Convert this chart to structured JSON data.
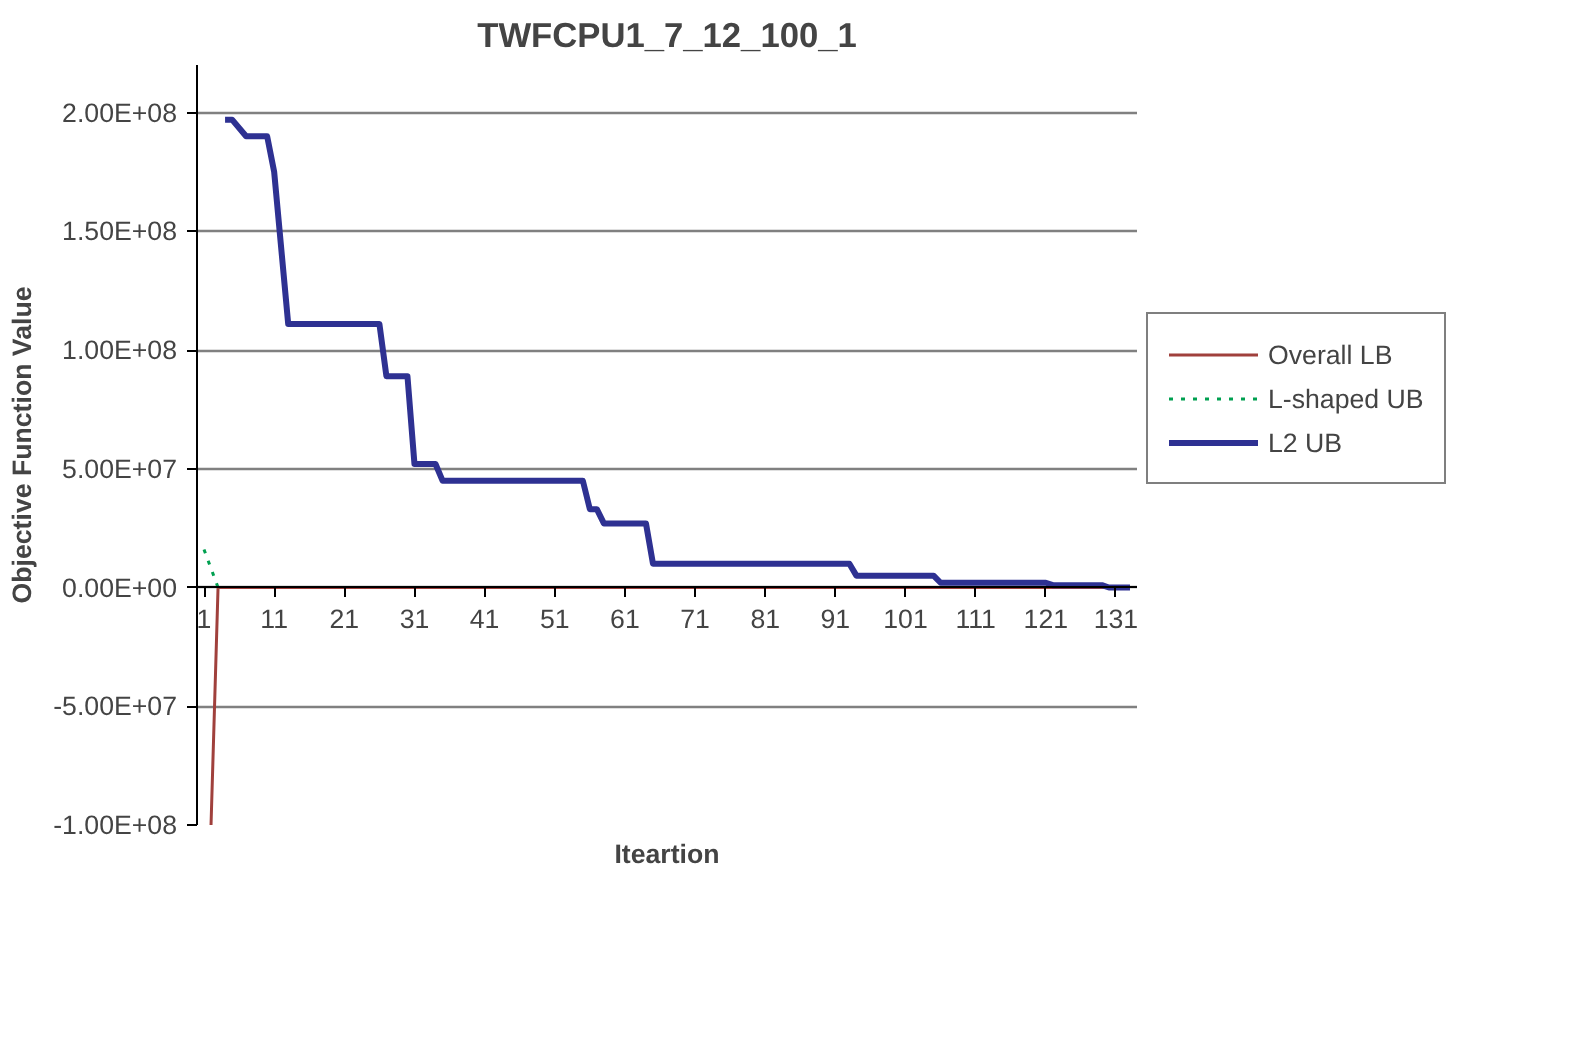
{
  "chart_data": {
    "type": "line",
    "title": "TWFCPU1_7_12_100_1",
    "xlabel": "Iteartion",
    "ylabel": "Objective Function Value",
    "xlim": [
      0,
      134
    ],
    "xticks": [
      1,
      11,
      21,
      31,
      41,
      51,
      61,
      71,
      81,
      91,
      101,
      111,
      121,
      131
    ],
    "ylim": [
      -100000000,
      220000000
    ],
    "yticks": [
      {
        "value": -100000000,
        "label": "-1.00E+08"
      },
      {
        "value": -50000000,
        "label": "-5.00E+07"
      },
      {
        "value": 0,
        "label": "0.00E+00"
      },
      {
        "value": 50000000,
        "label": "5.00E+07"
      },
      {
        "value": 100000000,
        "label": "1.00E+08"
      },
      {
        "value": 150000000,
        "label": "1.50E+08"
      },
      {
        "value": 200000000,
        "label": "2.00E+08"
      }
    ],
    "grid": "y",
    "legend": "right",
    "series": [
      {
        "name": "Overall LB",
        "color": "#a0403c",
        "line_style": "solid",
        "x": [
          2,
          3,
          133
        ],
        "values": [
          -100000000,
          0,
          0
        ]
      },
      {
        "name": "L-shaped UB",
        "color": "#00a050",
        "line_style": "dotted",
        "x": [
          1,
          2,
          3
        ],
        "values": [
          16000000,
          8000000,
          0
        ]
      },
      {
        "name": "L2 UB",
        "color": "#2e3192",
        "line_style": "solid",
        "x": [
          4,
          5,
          7,
          10,
          11,
          13,
          26,
          27,
          30,
          31,
          34,
          35,
          55,
          56,
          57,
          58,
          64,
          65,
          93,
          94,
          105,
          106,
          121,
          122,
          129,
          130,
          133
        ],
        "values": [
          197000000,
          197000000,
          190000000,
          190000000,
          175000000,
          111000000,
          111000000,
          89000000,
          89000000,
          52000000,
          52000000,
          45000000,
          45000000,
          33000000,
          33000000,
          27000000,
          27000000,
          10000000,
          10000000,
          5000000,
          5000000,
          2000000,
          2000000,
          1000000,
          1000000,
          0,
          0
        ]
      }
    ]
  }
}
